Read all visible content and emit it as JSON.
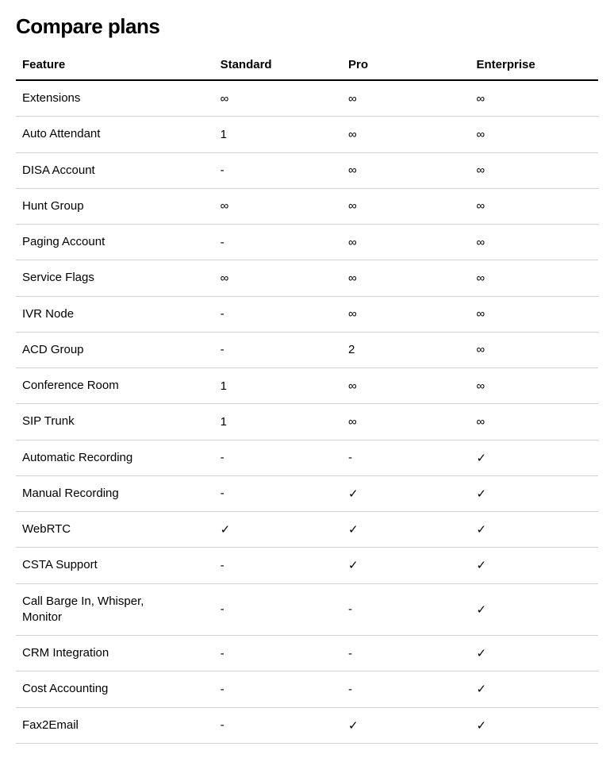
{
  "title": "Compare plans",
  "table": {
    "type": "table",
    "columns": [
      "Feature",
      "Standard",
      "Pro",
      "Enterprise"
    ],
    "column_widths": [
      "34%",
      "22%",
      "22%",
      "22%"
    ],
    "header_border_color": "#000000",
    "row_border_color": "#d0d0d0",
    "background_color": "#ffffff",
    "text_color": "#000000",
    "header_fontsize": 15,
    "cell_fontsize": 15,
    "rows": [
      {
        "feature": "Extensions",
        "standard": "∞",
        "pro": "∞",
        "enterprise": "∞"
      },
      {
        "feature": "Auto Attendant",
        "standard": "1",
        "pro": "∞",
        "enterprise": "∞"
      },
      {
        "feature": "DISA Account",
        "standard": "-",
        "pro": "∞",
        "enterprise": "∞"
      },
      {
        "feature": "Hunt Group",
        "standard": "∞",
        "pro": "∞",
        "enterprise": "∞"
      },
      {
        "feature": "Paging Account",
        "standard": "-",
        "pro": "∞",
        "enterprise": "∞"
      },
      {
        "feature": "Service Flags",
        "standard": "∞",
        "pro": "∞",
        "enterprise": "∞"
      },
      {
        "feature": "IVR Node",
        "standard": "-",
        "pro": "∞",
        "enterprise": "∞"
      },
      {
        "feature": "ACD Group",
        "standard": "-",
        "pro": "2",
        "enterprise": "∞"
      },
      {
        "feature": "Conference Room",
        "standard": "1",
        "pro": "∞",
        "enterprise": "∞"
      },
      {
        "feature": "SIP Trunk",
        "standard": "1",
        "pro": "∞",
        "enterprise": "∞"
      },
      {
        "feature": "Automatic Recording",
        "standard": "-",
        "pro": "-",
        "enterprise": "✓"
      },
      {
        "feature": "Manual Recording",
        "standard": "-",
        "pro": "✓",
        "enterprise": "✓"
      },
      {
        "feature": "WebRTC",
        "standard": "✓",
        "pro": "✓",
        "enterprise": "✓"
      },
      {
        "feature": "CSTA Support",
        "standard": "-",
        "pro": "✓",
        "enterprise": "✓"
      },
      {
        "feature": "Call Barge In, Whisper, Monitor",
        "standard": "-",
        "pro": "-",
        "enterprise": "✓"
      },
      {
        "feature": "CRM Integration",
        "standard": "-",
        "pro": "-",
        "enterprise": "✓"
      },
      {
        "feature": "Cost Accounting",
        "standard": "-",
        "pro": "-",
        "enterprise": "✓"
      },
      {
        "feature": "Fax2Email",
        "standard": "-",
        "pro": "✓",
        "enterprise": "✓"
      }
    ]
  }
}
